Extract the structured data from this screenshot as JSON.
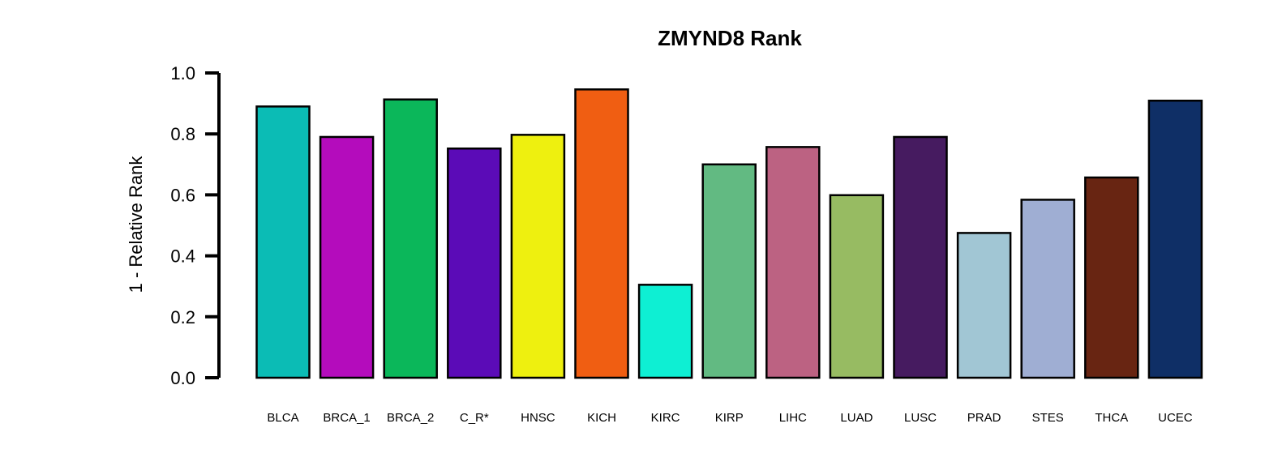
{
  "chart_data": {
    "type": "bar",
    "title": "ZMYND8 Rank",
    "xlabel": "",
    "ylabel": "1 - Relative Rank",
    "ylim": [
      0,
      1
    ],
    "yticks": [
      "0.0",
      "0.2",
      "0.4",
      "0.6",
      "0.8",
      "1.0"
    ],
    "grid": false,
    "categories": [
      "BLCA",
      "BRCA_1",
      "BRCA_2",
      "C_R*",
      "HNSC",
      "KICH",
      "KIRC",
      "KIRP",
      "LIHC",
      "LUAD",
      "LUSC",
      "PRAD",
      "STES",
      "THCA",
      "UCEC"
    ],
    "values": [
      0.89,
      0.79,
      0.913,
      0.752,
      0.797,
      0.946,
      0.305,
      0.7,
      0.757,
      0.599,
      0.79,
      0.475,
      0.584,
      0.657,
      0.909
    ],
    "colors": [
      "#0bbcb5",
      "#b40cbc",
      "#0bb75a",
      "#5b0bb7",
      "#eef00f",
      "#f05e12",
      "#0eefd3",
      "#62ba82",
      "#bc6282",
      "#97bb62",
      "#461b60",
      "#a1c6d4",
      "#9faed3",
      "#682512",
      "#0f2f66"
    ]
  }
}
